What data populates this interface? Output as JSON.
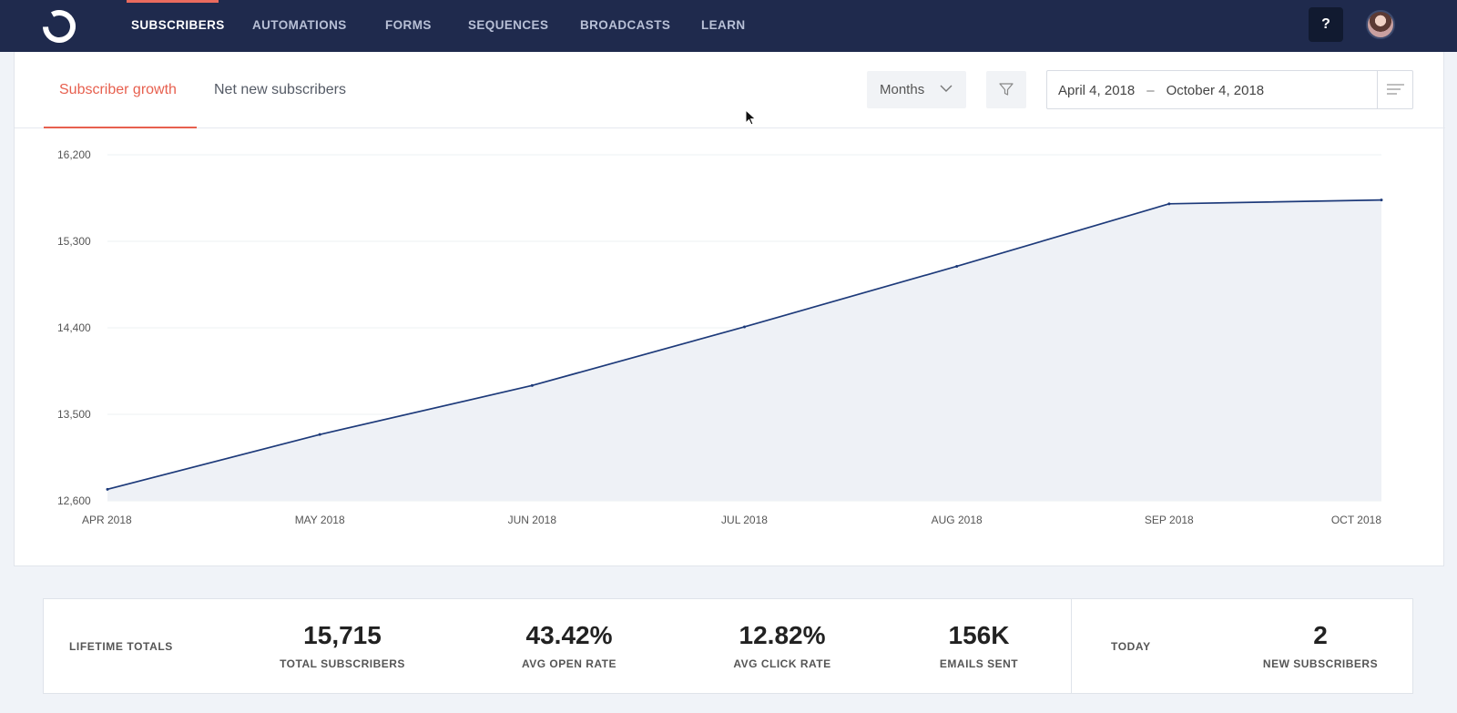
{
  "nav": {
    "items": [
      {
        "label": "SUBSCRIBERS",
        "active": true
      },
      {
        "label": "AUTOMATIONS",
        "active": false
      },
      {
        "label": "FORMS",
        "active": false
      },
      {
        "label": "SEQUENCES",
        "active": false
      },
      {
        "label": "BROADCASTS",
        "active": false
      },
      {
        "label": "LEARN",
        "active": false
      }
    ],
    "help_label": "?",
    "accent_color": "#ea6b5e",
    "bg_color": "#1f2a4d"
  },
  "tabs": [
    {
      "label": "Subscriber growth",
      "active": true
    },
    {
      "label": "Net new subscribers",
      "active": false
    }
  ],
  "controls": {
    "period_select": "Months",
    "date_start": "April 4, 2018",
    "date_sep": "–",
    "date_end": "October 4, 2018",
    "icons": [
      "chevron-down-icon",
      "filter-icon",
      "menu-lines-icon"
    ]
  },
  "chart_data": {
    "type": "area",
    "title": "",
    "xlabel": "",
    "ylabel": "",
    "x": [
      "APR 2018",
      "MAY 2018",
      "JUN 2018",
      "JUL 2018",
      "AUG 2018",
      "SEP 2018",
      "OCT 2018"
    ],
    "values": [
      12720,
      13290,
      13800,
      14410,
      15040,
      15690,
      15730
    ],
    "yticks": [
      "12,600",
      "13,500",
      "14,400",
      "15,300",
      "16,200"
    ],
    "ylim": [
      12600,
      16200
    ],
    "line_color": "#1d3a7a",
    "fill_color": "#eef1f6",
    "grid": true,
    "legend": "none"
  },
  "stats": {
    "lifetime_label": "LIFETIME TOTALS",
    "total_subscribers": {
      "value": "15,715",
      "label": "TOTAL SUBSCRIBERS"
    },
    "avg_open_rate": {
      "value": "43.42%",
      "label": "AVG OPEN RATE"
    },
    "avg_click_rate": {
      "value": "12.82%",
      "label": "AVG CLICK RATE"
    },
    "emails_sent": {
      "value": "156K",
      "label": "EMAILS SENT"
    },
    "today_label": "TODAY",
    "new_subscribers": {
      "value": "2",
      "label": "NEW SUBSCRIBERS"
    }
  }
}
